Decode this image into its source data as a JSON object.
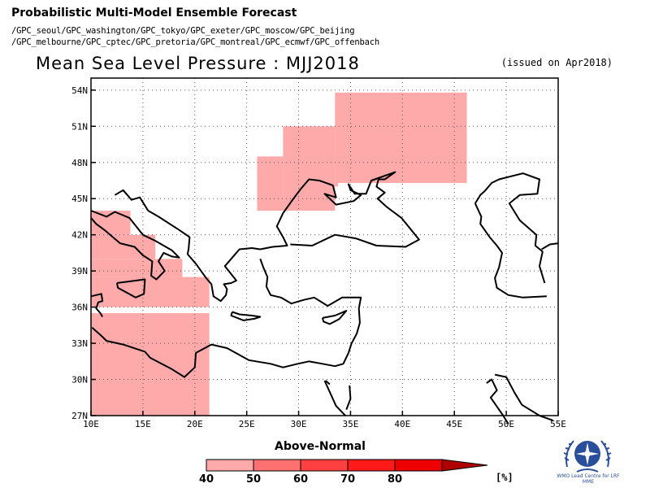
{
  "header": {
    "title": "Probabilistic Multi-Model Ensemble Forecast",
    "centres_line1": "/GPC_seoul/GPC_washington/GPC_tokyo/GPC_exeter/GPC_moscow/GPC_beijing",
    "centres_line2": "/GPC_melbourne/GPC_cptec/GPC_pretoria/GPC_montreal/GPC_ecmwf/GPC_offenbach"
  },
  "map": {
    "title": "Mean Sea Level Pressure : MJJ2018",
    "issued": "(issued on Apr2018)",
    "lon_range": [
      10,
      55
    ],
    "lat_range": [
      27,
      55
    ],
    "lon_ticks": [
      "10E",
      "15E",
      "20E",
      "25E",
      "30E",
      "35E",
      "40E",
      "45E",
      "50E",
      "55E"
    ],
    "lat_ticks": [
      "27N",
      "30N",
      "33N",
      "36N",
      "39N",
      "42N",
      "45N",
      "48N",
      "51N",
      "54N"
    ],
    "grid": "dotted",
    "shading_color": "#ffaaaa",
    "coastline_color": "#000000"
  },
  "legend": {
    "title": "Above-Normal",
    "labels": [
      "40",
      "50",
      "60",
      "70",
      "80"
    ],
    "unit": "[%]",
    "colors": [
      "#ffaaaa",
      "#ff7070",
      "#ff4040",
      "#ff1a1a",
      "#ee0000"
    ],
    "arrow_color": "#b00000"
  },
  "logo": {
    "icon": "wmo-emblem-icon",
    "text": "WMO Lead Centre for LRF MME",
    "color": "#2a4f9a"
  }
}
